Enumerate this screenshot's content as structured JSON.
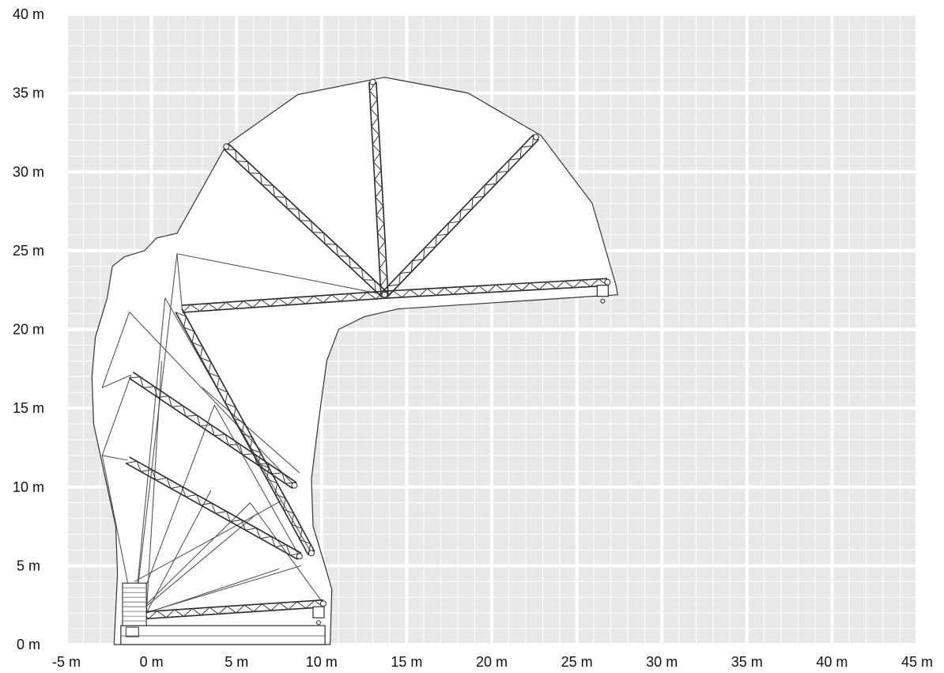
{
  "diagram": {
    "x_axis": {
      "min": -5,
      "max": 45,
      "step": 5,
      "labels": [
        "-5 m",
        "0 m",
        "5 m",
        "10 m",
        "15 m",
        "20 m",
        "25 m",
        "30 m",
        "35 m",
        "40 m",
        "45 m"
      ]
    },
    "y_axis": {
      "min": 0,
      "max": 40,
      "step": 5,
      "labels": [
        "0 m",
        "5 m",
        "10 m",
        "15 m",
        "20 m",
        "25 m",
        "30 m",
        "35 m",
        "40 m"
      ]
    },
    "colors": {
      "grid_background": "#e8e8e8",
      "grid_lines": "#ffffff",
      "structure": "#2a2a2a",
      "envelope_fill": "#ffffff"
    },
    "working_envelope": {
      "pivot_m": [
        13.7,
        22.2
      ],
      "reach_radius_m": 13.8,
      "outline_m": [
        [
          -2.2,
          0.0
        ],
        [
          -2.0,
          4.5
        ],
        [
          -2.1,
          7.5
        ],
        [
          -2.8,
          11.0
        ],
        [
          -3.4,
          14.0
        ],
        [
          -3.5,
          17.0
        ],
        [
          -3.3,
          19.5
        ],
        [
          -2.6,
          22.0
        ],
        [
          -2.3,
          24.0
        ],
        [
          -1.6,
          24.6
        ],
        [
          -0.4,
          25.0
        ],
        [
          0.3,
          25.8
        ],
        [
          1.5,
          26.1
        ],
        [
          4.4,
          31.7
        ],
        [
          8.6,
          34.9
        ],
        [
          13.7,
          36.0
        ],
        [
          18.6,
          35.0
        ],
        [
          22.9,
          32.3
        ],
        [
          25.9,
          28.0
        ],
        [
          27.3,
          22.8
        ],
        [
          27.4,
          22.2
        ],
        [
          14.5,
          21.3
        ],
        [
          12.5,
          20.8
        ],
        [
          11.0,
          20.0
        ],
        [
          10.3,
          18.0
        ],
        [
          9.8,
          14.0
        ],
        [
          9.4,
          10.5
        ],
        [
          9.5,
          7.5
        ],
        [
          10.2,
          5.0
        ],
        [
          10.6,
          3.5
        ],
        [
          10.5,
          0.0
        ]
      ]
    },
    "base_machine_m": {
      "track_x": [
        -1.8,
        10.2
      ],
      "track_y": [
        0.0,
        1.2
      ],
      "cab_x": [
        -1.7,
        -0.3
      ],
      "cab_y": [
        1.2,
        3.9
      ]
    },
    "jib_positions_m": [
      {
        "name": "ground",
        "from": [
          -1.2,
          1.8
        ],
        "to": [
          10.1,
          2.6
        ]
      },
      {
        "name": "low-angle",
        "from": [
          -1.4,
          11.7
        ],
        "to": [
          8.7,
          5.6
        ]
      },
      {
        "name": "mid-angle",
        "from": [
          -1.2,
          17.1
        ],
        "to": [
          8.4,
          10.1
        ]
      },
      {
        "name": "steep-folded",
        "from": [
          1.6,
          21.2
        ],
        "to": [
          9.4,
          5.8
        ]
      },
      {
        "name": "main-boom",
        "from": [
          1.8,
          21.3
        ],
        "to": [
          13.7,
          22.2
        ]
      },
      {
        "name": "fly-horizontal",
        "from": [
          13.7,
          22.2
        ],
        "to": [
          26.8,
          23.0
        ]
      },
      {
        "name": "fly-45",
        "from": [
          13.7,
          22.2
        ],
        "to": [
          22.6,
          32.2
        ]
      },
      {
        "name": "fly-vertical",
        "from": [
          13.7,
          22.2
        ],
        "to": [
          13.0,
          35.7
        ]
      },
      {
        "name": "fly-135",
        "from": [
          13.7,
          22.2
        ],
        "to": [
          4.4,
          31.6
        ]
      }
    ],
    "support_lines_m": [
      [
        [
          -1.0,
          1.8
        ],
        [
          1.5,
          24.8
        ]
      ],
      [
        [
          1.5,
          24.8
        ],
        [
          13.7,
          22.2
        ]
      ],
      [
        [
          1.5,
          24.8
        ],
        [
          1.8,
          21.3
        ]
      ],
      [
        [
          -2.9,
          16.3
        ],
        [
          -1.3,
          21.1
        ]
      ],
      [
        [
          -1.3,
          21.1
        ],
        [
          8.4,
          10.1
        ]
      ],
      [
        [
          -2.9,
          16.3
        ],
        [
          -1.2,
          17.1
        ]
      ],
      [
        [
          -2.9,
          12.0
        ],
        [
          -1.2,
          17.1
        ]
      ],
      [
        [
          -2.9,
          12.0
        ],
        [
          -1.4,
          11.7
        ]
      ],
      [
        [
          -2.9,
          12.0
        ],
        [
          -1.0,
          1.8
        ]
      ],
      [
        [
          -1.0,
          1.8
        ],
        [
          0.8,
          22.0
        ]
      ],
      [
        [
          0.8,
          22.0
        ],
        [
          9.4,
          5.8
        ]
      ],
      [
        [
          -1.0,
          1.8
        ],
        [
          3.7,
          15.2
        ]
      ],
      [
        [
          3.7,
          15.2
        ],
        [
          8.7,
          5.6
        ]
      ],
      [
        [
          -1.0,
          1.8
        ],
        [
          5.8,
          9.0
        ]
      ],
      [
        [
          5.8,
          9.0
        ],
        [
          10.1,
          2.6
        ]
      ],
      [
        [
          -1.0,
          1.8
        ],
        [
          6.2,
          8.3
        ]
      ],
      [
        [
          -1.0,
          1.8
        ],
        [
          8.8,
          5.0
        ]
      ],
      [
        [
          -0.3,
          2.0
        ],
        [
          3.5,
          9.8
        ]
      ],
      [
        [
          -0.3,
          2.0
        ],
        [
          7.5,
          4.8
        ]
      ],
      [
        [
          -0.3,
          2.0
        ],
        [
          0.6,
          18.0
        ]
      ],
      [
        [
          3.0,
          16.3
        ],
        [
          8.7,
          10.9
        ]
      ],
      [
        [
          -1.0,
          4.0
        ],
        [
          7.6,
          9.1
        ]
      ]
    ]
  }
}
